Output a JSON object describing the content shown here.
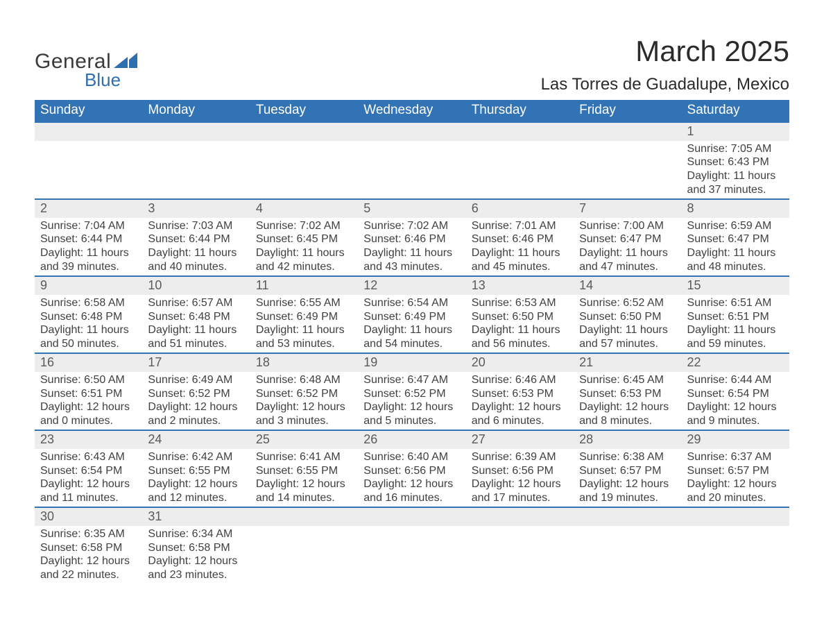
{
  "logo": {
    "top": "General",
    "bottom": "Blue",
    "top_color": "#3a3a3a",
    "bottom_color": "#2f6fb0",
    "mark_color": "#2f6fb0"
  },
  "title": "March 2025",
  "location": "Las Torres de Guadalupe, Mexico",
  "palette": {
    "header_bg": "#3173b4",
    "header_text": "#ffffff",
    "daynum_bg": "#ededed",
    "daynum_border": "#3173b4",
    "body_text": "#404040",
    "page_bg": "#ffffff"
  },
  "typography": {
    "title_fontsize": 42,
    "location_fontsize": 24,
    "weekday_fontsize": 19,
    "daynum_fontsize": 18,
    "detail_fontsize": 16
  },
  "table": {
    "type": "table",
    "columns": [
      "Sunday",
      "Monday",
      "Tuesday",
      "Wednesday",
      "Thursday",
      "Friday",
      "Saturday"
    ],
    "first_weekday_index": 6,
    "num_days": 31
  },
  "days": {
    "1": {
      "sunrise": "7:05 AM",
      "sunset": "6:43 PM",
      "daylight": "11 hours and 37 minutes."
    },
    "2": {
      "sunrise": "7:04 AM",
      "sunset": "6:44 PM",
      "daylight": "11 hours and 39 minutes."
    },
    "3": {
      "sunrise": "7:03 AM",
      "sunset": "6:44 PM",
      "daylight": "11 hours and 40 minutes."
    },
    "4": {
      "sunrise": "7:02 AM",
      "sunset": "6:45 PM",
      "daylight": "11 hours and 42 minutes."
    },
    "5": {
      "sunrise": "7:02 AM",
      "sunset": "6:46 PM",
      "daylight": "11 hours and 43 minutes."
    },
    "6": {
      "sunrise": "7:01 AM",
      "sunset": "6:46 PM",
      "daylight": "11 hours and 45 minutes."
    },
    "7": {
      "sunrise": "7:00 AM",
      "sunset": "6:47 PM",
      "daylight": "11 hours and 47 minutes."
    },
    "8": {
      "sunrise": "6:59 AM",
      "sunset": "6:47 PM",
      "daylight": "11 hours and 48 minutes."
    },
    "9": {
      "sunrise": "6:58 AM",
      "sunset": "6:48 PM",
      "daylight": "11 hours and 50 minutes."
    },
    "10": {
      "sunrise": "6:57 AM",
      "sunset": "6:48 PM",
      "daylight": "11 hours and 51 minutes."
    },
    "11": {
      "sunrise": "6:55 AM",
      "sunset": "6:49 PM",
      "daylight": "11 hours and 53 minutes."
    },
    "12": {
      "sunrise": "6:54 AM",
      "sunset": "6:49 PM",
      "daylight": "11 hours and 54 minutes."
    },
    "13": {
      "sunrise": "6:53 AM",
      "sunset": "6:50 PM",
      "daylight": "11 hours and 56 minutes."
    },
    "14": {
      "sunrise": "6:52 AM",
      "sunset": "6:50 PM",
      "daylight": "11 hours and 57 minutes."
    },
    "15": {
      "sunrise": "6:51 AM",
      "sunset": "6:51 PM",
      "daylight": "11 hours and 59 minutes."
    },
    "16": {
      "sunrise": "6:50 AM",
      "sunset": "6:51 PM",
      "daylight": "12 hours and 0 minutes."
    },
    "17": {
      "sunrise": "6:49 AM",
      "sunset": "6:52 PM",
      "daylight": "12 hours and 2 minutes."
    },
    "18": {
      "sunrise": "6:48 AM",
      "sunset": "6:52 PM",
      "daylight": "12 hours and 3 minutes."
    },
    "19": {
      "sunrise": "6:47 AM",
      "sunset": "6:52 PM",
      "daylight": "12 hours and 5 minutes."
    },
    "20": {
      "sunrise": "6:46 AM",
      "sunset": "6:53 PM",
      "daylight": "12 hours and 6 minutes."
    },
    "21": {
      "sunrise": "6:45 AM",
      "sunset": "6:53 PM",
      "daylight": "12 hours and 8 minutes."
    },
    "22": {
      "sunrise": "6:44 AM",
      "sunset": "6:54 PM",
      "daylight": "12 hours and 9 minutes."
    },
    "23": {
      "sunrise": "6:43 AM",
      "sunset": "6:54 PM",
      "daylight": "12 hours and 11 minutes."
    },
    "24": {
      "sunrise": "6:42 AM",
      "sunset": "6:55 PM",
      "daylight": "12 hours and 12 minutes."
    },
    "25": {
      "sunrise": "6:41 AM",
      "sunset": "6:55 PM",
      "daylight": "12 hours and 14 minutes."
    },
    "26": {
      "sunrise": "6:40 AM",
      "sunset": "6:56 PM",
      "daylight": "12 hours and 16 minutes."
    },
    "27": {
      "sunrise": "6:39 AM",
      "sunset": "6:56 PM",
      "daylight": "12 hours and 17 minutes."
    },
    "28": {
      "sunrise": "6:38 AM",
      "sunset": "6:57 PM",
      "daylight": "12 hours and 19 minutes."
    },
    "29": {
      "sunrise": "6:37 AM",
      "sunset": "6:57 PM",
      "daylight": "12 hours and 20 minutes."
    },
    "30": {
      "sunrise": "6:35 AM",
      "sunset": "6:58 PM",
      "daylight": "12 hours and 22 minutes."
    },
    "31": {
      "sunrise": "6:34 AM",
      "sunset": "6:58 PM",
      "daylight": "12 hours and 23 minutes."
    }
  },
  "labels": {
    "sunrise": "Sunrise:",
    "sunset": "Sunset:",
    "daylight": "Daylight:"
  }
}
